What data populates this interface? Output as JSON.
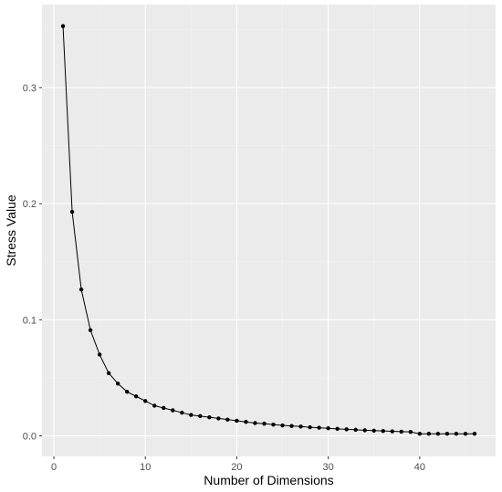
{
  "chart_data": {
    "type": "line",
    "title": "",
    "xlabel": "Number of Dimensions",
    "ylabel": "Stress Value",
    "xlim": [
      -1.3,
      48.3
    ],
    "ylim": [
      -0.0177,
      0.3715
    ],
    "xticks": [
      0,
      10,
      20,
      30,
      40
    ],
    "yticks": [
      0.0,
      0.1,
      0.2,
      0.3
    ],
    "xtick_labels": [
      "0",
      "10",
      "20",
      "30",
      "40"
    ],
    "ytick_labels": [
      "0.0",
      "0.1",
      "0.2",
      "0.3"
    ],
    "grid": true,
    "legend": "none",
    "colors": {
      "panel_background": "#ebebeb",
      "grid_major": "#ffffff",
      "grid_minor": "#f4f4f4",
      "line": "#000000",
      "point": "#000000"
    },
    "x": [
      1,
      2,
      3,
      4,
      5,
      6,
      7,
      8,
      9,
      10,
      11,
      12,
      13,
      14,
      15,
      16,
      17,
      18,
      19,
      20,
      21,
      22,
      23,
      24,
      25,
      26,
      27,
      28,
      29,
      30,
      31,
      32,
      33,
      34,
      35,
      36,
      37,
      38,
      39,
      40,
      41,
      42,
      43,
      44,
      45,
      46
    ],
    "series": [
      {
        "values": [
          0.353,
          0.193,
          0.126,
          0.091,
          0.07,
          0.054,
          0.045,
          0.038,
          0.034,
          0.03,
          0.026,
          0.024,
          0.022,
          0.02,
          0.018,
          0.017,
          0.016,
          0.015,
          0.014,
          0.013,
          0.012,
          0.011,
          0.0105,
          0.0097,
          0.009,
          0.0085,
          0.008,
          0.0074,
          0.007,
          0.0065,
          0.006,
          0.0056,
          0.0052,
          0.0048,
          0.0045,
          0.0042,
          0.0039,
          0.0036,
          0.0034,
          0.0018,
          0.0018,
          0.0018,
          0.0018,
          0.0018,
          0.0018,
          0.0018
        ]
      }
    ]
  }
}
